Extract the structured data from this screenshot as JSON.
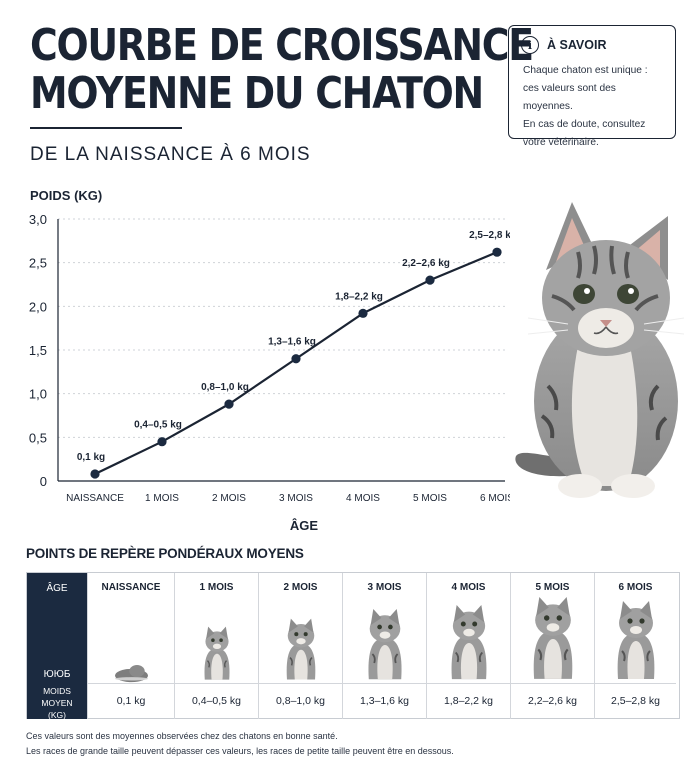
{
  "header": {
    "title_line1": "COURBE DE CROISSANCE",
    "title_line2": "MOYENNE DU CHATON",
    "subtitle": "DE LA NAISSANCE À 6 MOIS"
  },
  "info": {
    "icon": "info-icon",
    "icon_glyph": "i",
    "title": "À SAVOIR",
    "lines": [
      "Chaque chaton est unique :",
      "ces valeurs sont des moyennes.",
      "En cas de doute, consultez",
      "votre vétérinaire."
    ]
  },
  "colors": {
    "navy": "#1b2a40",
    "line": "#1b2433",
    "grid": "#cfd3d8",
    "tabby": "#9a9a9a"
  },
  "chart_data": {
    "type": "line",
    "ylabel": "POIDS (KG)",
    "xlabel": "ÂGE",
    "categories": [
      "NAISSANCE",
      "1 MOIS",
      "2 MOIS",
      "3 MOIS",
      "4 MOIS",
      "5 MOIS",
      "6 MOIS"
    ],
    "values": [
      0.08,
      0.45,
      0.88,
      1.4,
      1.92,
      2.3,
      2.62
    ],
    "point_labels": [
      "0,1 kg",
      "0,4–0,5 kg",
      "0,8–1,0 kg",
      "1,3–1,6 kg",
      "1,8–2,2 kg",
      "2,2–2,6 kg",
      "2,5–2,8 kg"
    ],
    "yticks": [
      0,
      0.5,
      1.0,
      1.5,
      2.0,
      2.5,
      3.0
    ],
    "ytick_labels": [
      "0",
      "0,5",
      "1,0",
      "1,5",
      "2,0",
      "2,5",
      "3,0"
    ],
    "ylim": [
      0,
      3.0
    ],
    "grid": true
  },
  "table": {
    "title": "POINTS DE REPÈRE PONDÉRAUX MOYENS",
    "head_age": "ÂGE",
    "head_glyph": "ЮЮБ",
    "head_weight_line1": "MOIDS MOYEN",
    "head_weight_line2": "(KG)",
    "columns": [
      {
        "age": "NAISSANCE",
        "weight": "0,1 kg"
      },
      {
        "age": "1 MOIS",
        "weight": "0,4–0,5 kg"
      },
      {
        "age": "2 MOIS",
        "weight": "0,8–1,0 kg"
      },
      {
        "age": "3 MOIS",
        "weight": "1,3–1,6 kg"
      },
      {
        "age": "4 MOIS",
        "weight": "1,8–2,2 kg"
      },
      {
        "age": "5 MOIS",
        "weight": "2,2–2,6 kg"
      },
      {
        "age": "6 MOIS",
        "weight": "2,5–2,8 kg"
      }
    ]
  },
  "footnotes": [
    "Ces valeurs sont des moyennes observées chez des chatons en bonne santé.",
    "Les races de grande taille peuvent dépasser ces valeurs, les races de petite taille peuvent être en dessous."
  ]
}
